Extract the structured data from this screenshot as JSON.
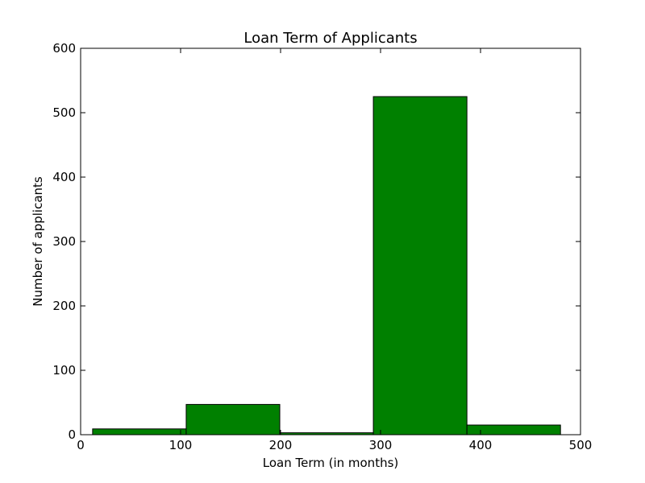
{
  "chart_data": {
    "type": "bar",
    "title": "Loan Term of Applicants",
    "xlabel": "Loan Term (in months)",
    "ylabel": "Number of applicants",
    "xlim": [
      0,
      500
    ],
    "ylim": [
      0,
      600
    ],
    "xticks": [
      0,
      100,
      200,
      300,
      400,
      500
    ],
    "yticks": [
      0,
      100,
      200,
      300,
      400,
      500,
      600
    ],
    "grid": false,
    "bar_color": "#008000",
    "bins": [
      {
        "x0": 12,
        "x1": 105.6,
        "value": 9
      },
      {
        "x0": 105.6,
        "x1": 199.2,
        "value": 47
      },
      {
        "x0": 199.2,
        "x1": 292.8,
        "value": 3
      },
      {
        "x0": 292.8,
        "x1": 386.4,
        "value": 525
      },
      {
        "x0": 386.4,
        "x1": 480,
        "value": 15
      }
    ]
  }
}
